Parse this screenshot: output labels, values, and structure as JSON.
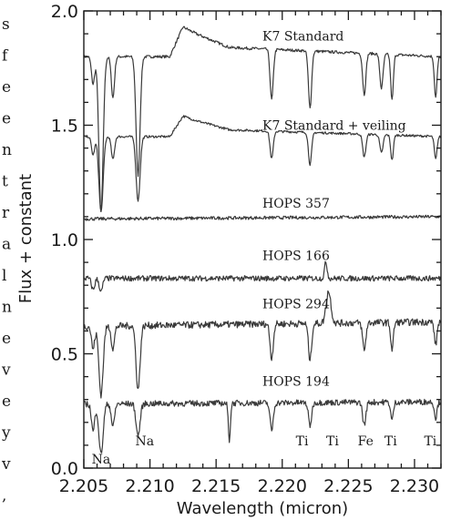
{
  "left_margin_text": [
    "s",
    "f",
    "e",
    "e",
    "n",
    "t",
    "r",
    "a",
    "l",
    "n",
    "e",
    "v",
    "e",
    "y",
    "v",
    ","
  ],
  "chart_data": {
    "type": "line",
    "xlabel": "Wavelength (micron)",
    "ylabel": "Flux + constant",
    "xlim": [
      2.205,
      2.232
    ],
    "ylim": [
      0.0,
      2.0
    ],
    "x_ticks": [
      2.205,
      2.21,
      2.215,
      2.22,
      2.225,
      2.23
    ],
    "x_tick_labels": [
      "2.205",
      "2.210",
      "2.215",
      "2.220",
      "2.225",
      "2.230"
    ],
    "y_ticks": [
      0.0,
      0.5,
      1.0,
      1.5,
      2.0
    ],
    "y_tick_labels": [
      "0.0",
      "0.5",
      "1.0",
      "1.5",
      "2.0"
    ],
    "grid": false,
    "series": [
      {
        "name": "K7 Standard",
        "label_x": 2.2185,
        "label_y": 1.87,
        "continuum": [
          [
            2.205,
            1.8
          ],
          [
            2.2115,
            1.8
          ],
          [
            2.2125,
            1.93
          ],
          [
            2.2135,
            1.9
          ],
          [
            2.216,
            1.84
          ],
          [
            2.232,
            1.8
          ]
        ],
        "absorption": [
          [
            2.2057,
            0.12,
            0.00012
          ],
          [
            2.2063,
            0.68,
            0.00016
          ],
          [
            2.2072,
            0.18,
            0.00012
          ],
          [
            2.2091,
            0.52,
            0.00015
          ],
          [
            2.2192,
            0.22,
            0.00012
          ],
          [
            2.2221,
            0.25,
            0.00012
          ],
          [
            2.2262,
            0.18,
            0.00012
          ],
          [
            2.2275,
            0.15,
            0.00012
          ],
          [
            2.2283,
            0.2,
            0.0001
          ],
          [
            2.2316,
            0.18,
            0.0001
          ]
        ],
        "emission": [],
        "noise": 0.006
      },
      {
        "name": "K7 Standard + veiling",
        "label_x": 2.2185,
        "label_y": 1.48,
        "continuum": [
          [
            2.205,
            1.45
          ],
          [
            2.2115,
            1.45
          ],
          [
            2.2125,
            1.54
          ],
          [
            2.2135,
            1.52
          ],
          [
            2.216,
            1.48
          ],
          [
            2.232,
            1.45
          ]
        ],
        "absorption": [
          [
            2.2057,
            0.08,
            0.00012
          ],
          [
            2.2063,
            0.33,
            0.00016
          ],
          [
            2.2072,
            0.1,
            0.00012
          ],
          [
            2.2091,
            0.28,
            0.00015
          ],
          [
            2.2192,
            0.12,
            0.00012
          ],
          [
            2.2221,
            0.14,
            0.00012
          ],
          [
            2.2262,
            0.1,
            0.00012
          ],
          [
            2.2275,
            0.08,
            0.00012
          ],
          [
            2.2283,
            0.11,
            0.0001
          ],
          [
            2.2316,
            0.1,
            0.0001
          ]
        ],
        "emission": [],
        "noise": 0.005
      },
      {
        "name": "HOPS 357",
        "label_x": 2.2185,
        "label_y": 1.14,
        "continuum": [
          [
            2.205,
            1.09
          ],
          [
            2.232,
            1.1
          ]
        ],
        "absorption": [],
        "emission": [],
        "noise": 0.007
      },
      {
        "name": "HOPS 166",
        "label_x": 2.2185,
        "label_y": 0.91,
        "continuum": [
          [
            2.205,
            0.83
          ],
          [
            2.232,
            0.83
          ]
        ],
        "absorption": [
          [
            2.2057,
            0.05,
            0.00012
          ],
          [
            2.2063,
            0.06,
            0.00012
          ]
        ],
        "emission": [
          [
            2.2233,
            0.07,
            0.0001
          ]
        ],
        "noise": 0.012
      },
      {
        "name": "HOPS 294",
        "label_x": 2.2185,
        "label_y": 0.7,
        "continuum": [
          [
            2.205,
            0.62
          ],
          [
            2.232,
            0.64
          ]
        ],
        "absorption": [
          [
            2.2057,
            0.1,
            0.00012
          ],
          [
            2.2063,
            0.3,
            0.00016
          ],
          [
            2.2072,
            0.1,
            0.00012
          ],
          [
            2.2091,
            0.28,
            0.00015
          ],
          [
            2.2192,
            0.15,
            0.00012
          ],
          [
            2.2221,
            0.16,
            0.00012
          ],
          [
            2.2262,
            0.12,
            0.00012
          ],
          [
            2.2283,
            0.12,
            0.0001
          ],
          [
            2.2316,
            0.1,
            0.0001
          ]
        ],
        "emission": [
          [
            2.2235,
            0.14,
            0.00018
          ]
        ],
        "noise": 0.015
      },
      {
        "name": "HOPS 194",
        "label_x": 2.2185,
        "label_y": 0.36,
        "continuum": [
          [
            2.205,
            0.28
          ],
          [
            2.232,
            0.29
          ]
        ],
        "absorption": [
          [
            2.2057,
            0.12,
            0.00012
          ],
          [
            2.2063,
            0.22,
            0.00016
          ],
          [
            2.2072,
            0.1,
            0.00012
          ],
          [
            2.2091,
            0.14,
            0.00015
          ],
          [
            2.216,
            0.16,
            8e-05
          ],
          [
            2.2192,
            0.12,
            0.00012
          ],
          [
            2.2221,
            0.1,
            0.00012
          ],
          [
            2.2262,
            0.1,
            0.00012
          ],
          [
            2.2283,
            0.08,
            0.0001
          ],
          [
            2.2316,
            0.07,
            0.0001
          ]
        ],
        "emission": [],
        "noise": 0.013
      }
    ],
    "line_labels": [
      {
        "text": "Na",
        "x": 2.2063,
        "y": 0.02
      },
      {
        "text": "Na",
        "x": 2.2096,
        "y": 0.1
      },
      {
        "text": "Ti",
        "x": 2.2215,
        "y": 0.1
      },
      {
        "text": "Ti",
        "x": 2.2238,
        "y": 0.1
      },
      {
        "text": "Fe",
        "x": 2.2263,
        "y": 0.1
      },
      {
        "text": "Ti",
        "x": 2.2282,
        "y": 0.1
      },
      {
        "text": "Ti",
        "x": 2.2312,
        "y": 0.1
      }
    ]
  }
}
